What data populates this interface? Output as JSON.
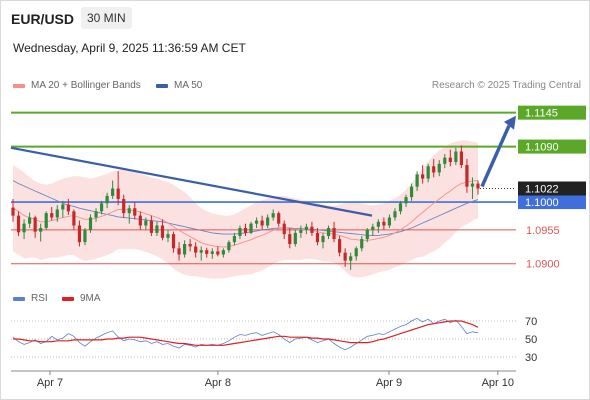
{
  "header": {
    "symbol": "EUR/USD",
    "timeframe": "30 MIN",
    "datetime": "Wednesday, April 9, 2025 11:36:59 AM CET"
  },
  "legend": {
    "items": [
      {
        "label": "MA 20 + Bollinger Bands",
        "color": "#f4908c"
      },
      {
        "label": "MA 50",
        "color": "#3b5ea8"
      }
    ],
    "credit": "Research © 2025 Trading Central"
  },
  "rsi_legend": {
    "items": [
      {
        "label": "RSI",
        "color": "#5b7fd6"
      },
      {
        "label": "9MA",
        "color": "#e02020"
      }
    ]
  },
  "chart_data": [
    {
      "type": "candlestick",
      "y_range": [
        1.0872,
        1.1172
      ],
      "x_ticks": [
        "Apr 7",
        "Apr 8",
        "Apr 9",
        "Apr 10"
      ],
      "current_price": "1.1022",
      "levels": [
        {
          "label": "1.1145",
          "value": 1.1145,
          "kind": "resistance",
          "color": "#5ba829"
        },
        {
          "label": "1.1090",
          "value": 1.109,
          "kind": "resistance",
          "color": "#5ba829"
        },
        {
          "label": "1.1000",
          "value": 1.1,
          "kind": "pivot",
          "color": "#3f6fdc"
        },
        {
          "label": "1.0955",
          "value": 1.0955,
          "kind": "support",
          "color": "#e05656"
        },
        {
          "label": "1.0900",
          "value": 1.09,
          "kind": "support",
          "color": "#e05656"
        }
      ],
      "candles": [
        [
          1.0991,
          1.1005,
          1.0968,
          1.0978
        ],
        [
          1.0978,
          1.0985,
          1.0945,
          1.0951
        ],
        [
          1.0951,
          1.0972,
          1.094,
          1.0965
        ],
        [
          1.0965,
          1.0983,
          1.0958,
          1.0975
        ],
        [
          1.0975,
          1.0978,
          1.0942,
          1.0952
        ],
        [
          1.0952,
          1.0965,
          1.0936,
          1.0958
        ],
        [
          1.0958,
          1.0985,
          1.0955,
          1.0982
        ],
        [
          1.0982,
          1.0992,
          1.097,
          1.0975
        ],
        [
          1.0975,
          1.0995,
          1.0968,
          1.0988
        ],
        [
          1.0988,
          1.1002,
          1.0975,
          1.0996
        ],
        [
          1.0996,
          1.1005,
          1.0979,
          1.0985
        ],
        [
          1.0985,
          1.0988,
          1.0955,
          1.0962
        ],
        [
          1.0962,
          1.097,
          1.0928,
          1.0935
        ],
        [
          1.0935,
          1.0958,
          1.093,
          1.0955
        ],
        [
          1.0955,
          1.098,
          1.095,
          1.0975
        ],
        [
          1.0975,
          1.099,
          1.0968,
          1.0985
        ],
        [
          1.0985,
          1.1002,
          1.098,
          1.0998
        ],
        [
          1.0998,
          1.1015,
          1.099,
          1.101
        ],
        [
          1.101,
          1.1035,
          1.1005,
          1.1022
        ],
        [
          1.1022,
          1.105,
          1.0995,
          1.1005
        ],
        [
          1.1005,
          1.1012,
          1.0975,
          1.0982
        ],
        [
          1.0982,
          1.0995,
          1.0965,
          1.099
        ],
        [
          1.099,
          1.1,
          1.0972,
          1.0978
        ],
        [
          1.0978,
          1.0985,
          1.0955,
          1.0962
        ],
        [
          1.0962,
          1.0975,
          1.0955,
          1.097
        ],
        [
          1.097,
          1.0978,
          1.0945,
          1.095
        ],
        [
          1.095,
          1.0968,
          1.0945,
          1.0962
        ],
        [
          1.0962,
          1.0972,
          1.0938,
          1.0942
        ],
        [
          1.0942,
          1.0955,
          1.0935,
          1.0948
        ],
        [
          1.0948,
          1.0952,
          1.0918,
          1.0925
        ],
        [
          1.0925,
          1.0935,
          1.0905,
          1.0915
        ],
        [
          1.0915,
          1.0938,
          1.091,
          1.0932
        ],
        [
          1.0932,
          1.094,
          1.092,
          1.0928
        ],
        [
          1.0928,
          1.0935,
          1.091,
          1.0918
        ],
        [
          1.0918,
          1.0928,
          1.0905,
          1.0922
        ],
        [
          1.0922,
          1.0926,
          1.091,
          1.0916
        ],
        [
          1.0916,
          1.0925,
          1.0908,
          1.092
        ],
        [
          1.092,
          1.0928,
          1.0912,
          1.0915
        ],
        [
          1.0915,
          1.0925,
          1.091,
          1.0922
        ],
        [
          1.0922,
          1.0938,
          1.0918,
          1.0935
        ],
        [
          1.0935,
          1.095,
          1.093,
          1.0945
        ],
        [
          1.0945,
          1.0962,
          1.094,
          1.0958
        ],
        [
          1.0958,
          1.0965,
          1.0945,
          1.095
        ],
        [
          1.095,
          1.0968,
          1.0948,
          1.0965
        ],
        [
          1.0965,
          1.0975,
          1.0958,
          1.097
        ],
        [
          1.097,
          1.0978,
          1.0955,
          1.0962
        ],
        [
          1.0962,
          1.098,
          1.0958,
          1.0975
        ],
        [
          1.0975,
          1.0988,
          1.097,
          1.0982
        ],
        [
          1.0982,
          1.0985,
          1.096,
          1.0965
        ],
        [
          1.0965,
          1.097,
          1.094,
          1.0948
        ],
        [
          1.0948,
          1.0958,
          1.0925,
          1.0932
        ],
        [
          1.0932,
          1.0955,
          1.0928,
          1.095
        ],
        [
          1.095,
          1.0962,
          1.0942,
          1.0955
        ],
        [
          1.0955,
          1.0965,
          1.0948,
          1.096
        ],
        [
          1.096,
          1.0968,
          1.0945,
          1.095
        ],
        [
          1.095,
          1.0958,
          1.093,
          1.0935
        ],
        [
          1.0935,
          1.095,
          1.0925,
          1.0945
        ],
        [
          1.0945,
          1.0962,
          1.094,
          1.0958
        ],
        [
          1.0958,
          1.0968,
          1.0935,
          1.094
        ],
        [
          1.094,
          1.0945,
          1.0912,
          1.0918
        ],
        [
          1.0918,
          1.0925,
          1.0895,
          1.0905
        ],
        [
          1.0905,
          1.0918,
          1.089,
          1.0912
        ],
        [
          1.0912,
          1.0928,
          1.0905,
          1.0925
        ],
        [
          1.0925,
          1.0945,
          1.092,
          1.094
        ],
        [
          1.094,
          1.0958,
          1.0935,
          1.0955
        ],
        [
          1.0955,
          1.0965,
          1.0945,
          1.096
        ],
        [
          1.096,
          1.0972,
          1.095,
          1.0968
        ],
        [
          1.0968,
          1.0975,
          1.0955,
          1.0962
        ],
        [
          1.0962,
          1.098,
          1.0958,
          1.0975
        ],
        [
          1.0975,
          1.099,
          1.097,
          1.0985
        ],
        [
          1.0985,
          1.1002,
          1.098,
          1.0998
        ],
        [
          1.0998,
          1.1012,
          1.0992,
          1.1008
        ],
        [
          1.1008,
          1.103,
          1.1002,
          1.1025
        ],
        [
          1.1025,
          1.105,
          1.1018,
          1.1045
        ],
        [
          1.1045,
          1.106,
          1.103,
          1.1038
        ],
        [
          1.1038,
          1.1062,
          1.1032,
          1.1058
        ],
        [
          1.1058,
          1.107,
          1.104,
          1.1048
        ],
        [
          1.1048,
          1.1068,
          1.1042,
          1.1062
        ],
        [
          1.1062,
          1.1078,
          1.1055,
          1.1072
        ],
        [
          1.1072,
          1.1085,
          1.1058,
          1.1065
        ],
        [
          1.1065,
          1.1088,
          1.106,
          1.1082
        ],
        [
          1.1082,
          1.1092,
          1.1055,
          1.106
        ],
        [
          1.106,
          1.107,
          1.1015,
          1.1025
        ],
        [
          1.1025,
          1.104,
          1.1005,
          1.103
        ],
        [
          1.103,
          1.1035,
          1.1012,
          1.1022
        ]
      ],
      "ma20": [
        1.099,
        1.0985,
        1.0978,
        1.0975,
        1.0972,
        1.0968,
        1.0968,
        1.097,
        1.0972,
        1.0975,
        1.0977,
        1.0978,
        1.0975,
        1.0972,
        1.0972,
        1.0974,
        1.0977,
        1.098,
        1.0984,
        1.0988,
        1.0988,
        1.0987,
        1.0986,
        1.0984,
        1.0981,
        1.0978,
        1.0975,
        1.0971,
        1.0966,
        1.096,
        1.0954,
        1.0949,
        1.0944,
        1.0939,
        1.0934,
        1.0931,
        1.0929,
        1.0928,
        1.0927,
        1.0928,
        1.093,
        1.0933,
        1.0936,
        1.0939,
        1.0943,
        1.0946,
        1.095,
        1.0954,
        1.0957,
        1.0958,
        1.0957,
        1.0956,
        1.0955,
        1.0955,
        1.0954,
        1.0952,
        1.095,
        1.0949,
        1.0948,
        1.0946,
        1.0943,
        1.094,
        1.0939,
        1.0938,
        1.0938,
        1.0939,
        1.0941,
        1.0943,
        1.0946,
        1.095,
        1.0955,
        1.0961,
        1.0968,
        1.0976,
        1.0983,
        1.0991,
        1.0998,
        1.1005,
        1.1012,
        1.1018,
        1.1025,
        1.103,
        1.1032,
        1.1034,
        1.1035
      ],
      "bb_upper": [
        1.106,
        1.1055,
        1.1048,
        1.104,
        1.1034,
        1.103,
        1.1028,
        1.103,
        1.1034,
        1.1038,
        1.104,
        1.1042,
        1.1042,
        1.104,
        1.1038,
        1.104,
        1.1043,
        1.1046,
        1.105,
        1.1052,
        1.1052,
        1.105,
        1.1048,
        1.1046,
        1.1043,
        1.104,
        1.1038,
        1.1035,
        1.1032,
        1.1028,
        1.1022,
        1.1016,
        1.1008,
        1.0998,
        1.099,
        1.0985,
        1.0982,
        1.098,
        1.0978,
        1.0978,
        1.098,
        1.0985,
        1.099,
        1.0995,
        1.1,
        1.1003,
        1.1006,
        1.1008,
        1.101,
        1.101,
        1.1008,
        1.1006,
        1.1004,
        1.1002,
        1.1,
        1.0998,
        1.0996,
        1.0994,
        1.0994,
        1.0996,
        1.0998,
        1.1,
        1.1,
        1.0998,
        1.0996,
        1.0995,
        1.0996,
        1.0998,
        1.1002,
        1.1006,
        1.1012,
        1.102,
        1.103,
        1.1042,
        1.1055,
        1.1066,
        1.1076,
        1.1084,
        1.109,
        1.1095,
        1.1098,
        1.11,
        1.11,
        1.1098,
        1.1096
      ],
      "bb_lower": [
        1.092,
        1.0915,
        1.0908,
        1.091,
        1.091,
        1.0906,
        1.0908,
        1.091,
        1.091,
        1.0912,
        1.0914,
        1.0914,
        1.0908,
        1.0904,
        1.0906,
        1.0908,
        1.0911,
        1.0914,
        1.0918,
        1.0924,
        1.0924,
        1.0924,
        1.0924,
        1.0922,
        1.0919,
        1.0916,
        1.0912,
        1.0907,
        1.09,
        1.0892,
        1.0886,
        1.0882,
        1.088,
        1.088,
        1.0878,
        1.0877,
        1.0876,
        1.0876,
        1.0876,
        1.0878,
        1.088,
        1.0881,
        1.0882,
        1.0883,
        1.0886,
        1.0889,
        1.0894,
        1.09,
        1.0904,
        1.0906,
        1.0906,
        1.0906,
        1.0906,
        1.0908,
        1.0908,
        1.0906,
        1.0904,
        1.0904,
        1.0902,
        1.0896,
        1.0888,
        1.088,
        1.0878,
        1.0878,
        1.088,
        1.0883,
        1.0886,
        1.0888,
        1.089,
        1.0894,
        1.0898,
        1.0902,
        1.0906,
        1.091,
        1.0911,
        1.0916,
        1.092,
        1.0926,
        1.0934,
        1.0941,
        1.0952,
        1.096,
        1.0964,
        1.097,
        1.0974
      ],
      "ma50": [
        1.1035,
        1.103,
        1.1026,
        1.1022,
        1.1018,
        1.1014,
        1.101,
        1.1006,
        1.1002,
        1.0998,
        1.0995,
        1.0993,
        1.099,
        1.0988,
        1.0986,
        1.0984,
        1.0982,
        1.098,
        1.0978,
        1.0976,
        1.0975,
        1.0974,
        1.0973,
        1.0972,
        1.0971,
        1.097,
        1.0969,
        1.0968,
        1.0966,
        1.0964,
        1.0962,
        1.096,
        1.0958,
        1.0956,
        1.0954,
        1.0952,
        1.095,
        1.0949,
        1.0948,
        1.0948,
        1.0948,
        1.0949,
        1.095,
        1.0952,
        1.0953,
        1.0955,
        1.0956,
        1.0957,
        1.0958,
        1.0958,
        1.0958,
        1.0957,
        1.0957,
        1.0956,
        1.0956,
        1.0955,
        1.0954,
        1.0953,
        1.0952,
        1.0951,
        1.095,
        1.0949,
        1.0948,
        1.0947,
        1.0946,
        1.0946,
        1.0946,
        1.0947,
        1.0948,
        1.095,
        1.0952,
        1.0955,
        1.0958,
        1.0962,
        1.0966,
        1.097,
        1.0974,
        1.0978,
        1.0982,
        1.0986,
        1.099,
        1.0994,
        1.0998,
        1.1001,
        1.1004
      ]
    },
    {
      "type": "line",
      "y_range": [
        20,
        80
      ],
      "y_ticks": [
        "70",
        "50",
        "30"
      ],
      "series": [
        {
          "name": "RSI",
          "values": [
            52,
            47,
            44,
            46,
            49,
            45,
            47,
            53,
            49,
            51,
            56,
            53,
            46,
            42,
            47,
            51,
            54,
            57,
            59,
            52,
            48,
            50,
            49,
            47,
            48,
            45,
            47,
            44,
            45,
            42,
            40,
            44,
            43,
            41,
            44,
            43,
            44,
            43,
            45,
            48,
            52,
            55,
            54,
            56,
            57,
            54,
            56,
            58,
            55,
            50,
            46,
            50,
            51,
            52,
            49,
            46,
            48,
            50,
            45,
            41,
            38,
            41,
            45,
            49,
            53,
            54,
            56,
            55,
            58,
            61,
            64,
            66,
            70,
            73,
            69,
            72,
            67,
            70,
            72,
            68,
            71,
            64,
            56,
            58,
            57
          ]
        },
        {
          "name": "9MA",
          "values": [
            50,
            50,
            49,
            48,
            48,
            47,
            47,
            47,
            48,
            48,
            48,
            49,
            49,
            49,
            49,
            49,
            49,
            50,
            50,
            51,
            51,
            52,
            52,
            52,
            51,
            50,
            49,
            48,
            47,
            46,
            45,
            45,
            44,
            43,
            43,
            43,
            43,
            43,
            43,
            44,
            45,
            46,
            47,
            48,
            49,
            50,
            51,
            52,
            53,
            53,
            52,
            52,
            52,
            52,
            51,
            51,
            50,
            50,
            49,
            48,
            47,
            46,
            46,
            46,
            46,
            47,
            49,
            50,
            52,
            54,
            56,
            58,
            60,
            62,
            64,
            66,
            67,
            68,
            69,
            70,
            70,
            70,
            68,
            66,
            63
          ]
        }
      ]
    }
  ]
}
